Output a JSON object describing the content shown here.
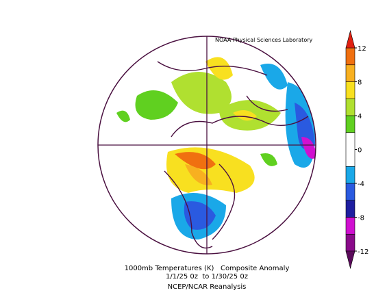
{
  "credit": "NOAA Physical Sciences Laboratory",
  "caption": [
    "1000mb Temperatures (K)   Composite Anomaly",
    "1/1/25 0z  to 1/30/25 0z",
    "NCEP/NCAR Reanalysis"
  ],
  "colorbar": {
    "levels": [
      -12,
      -10,
      -8,
      -6,
      -4,
      -2,
      2,
      4,
      6,
      8,
      10,
      12
    ],
    "colors": [
      "#8a0a8a",
      "#d010d0",
      "#1e1ea0",
      "#2a5ae0",
      "#1aa8e8",
      "#ffffff",
      "#60d020",
      "#b0e030",
      "#f8e020",
      "#f8b020",
      "#f07010"
    ],
    "under_color": "#5a0a5a",
    "over_color": "#e02010",
    "ticks": [
      12,
      8,
      4,
      0,
      -4,
      -8,
      -12
    ]
  }
}
